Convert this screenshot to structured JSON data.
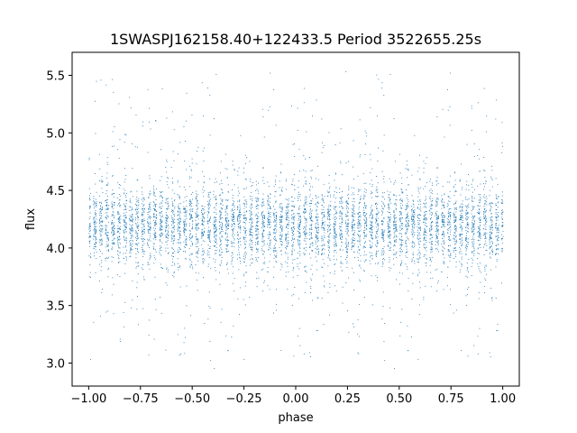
{
  "chart_data": {
    "type": "scatter",
    "title": "1SWASPJ162158.40+122433.5 Period 3522655.25s",
    "xlabel": "phase",
    "ylabel": "flux",
    "xlim": [
      -1.08,
      1.08
    ],
    "ylim": [
      2.8,
      5.7
    ],
    "xticks": [
      -1.0,
      -0.75,
      -0.5,
      -0.25,
      0.0,
      0.25,
      0.5,
      0.75,
      1.0
    ],
    "xtick_labels": [
      "−1.00",
      "−0.75",
      "−0.50",
      "−0.25",
      "0.00",
      "0.25",
      "0.50",
      "0.75",
      "1.00"
    ],
    "yticks": [
      3.0,
      3.5,
      4.0,
      4.5,
      5.0,
      5.5
    ],
    "ytick_labels": [
      "3.0",
      "3.5",
      "4.0",
      "4.5",
      "5.0",
      "5.5"
    ],
    "grid": false,
    "marker_color": "#1f77b4",
    "series": [
      {
        "x_range": [
          -1.0,
          1.0
        ],
        "baseline_flux": 4.2,
        "typical_flux_range": [
          3.8,
          4.6
        ],
        "outlier_flux_range": [
          2.95,
          5.55
        ]
      }
    ]
  }
}
